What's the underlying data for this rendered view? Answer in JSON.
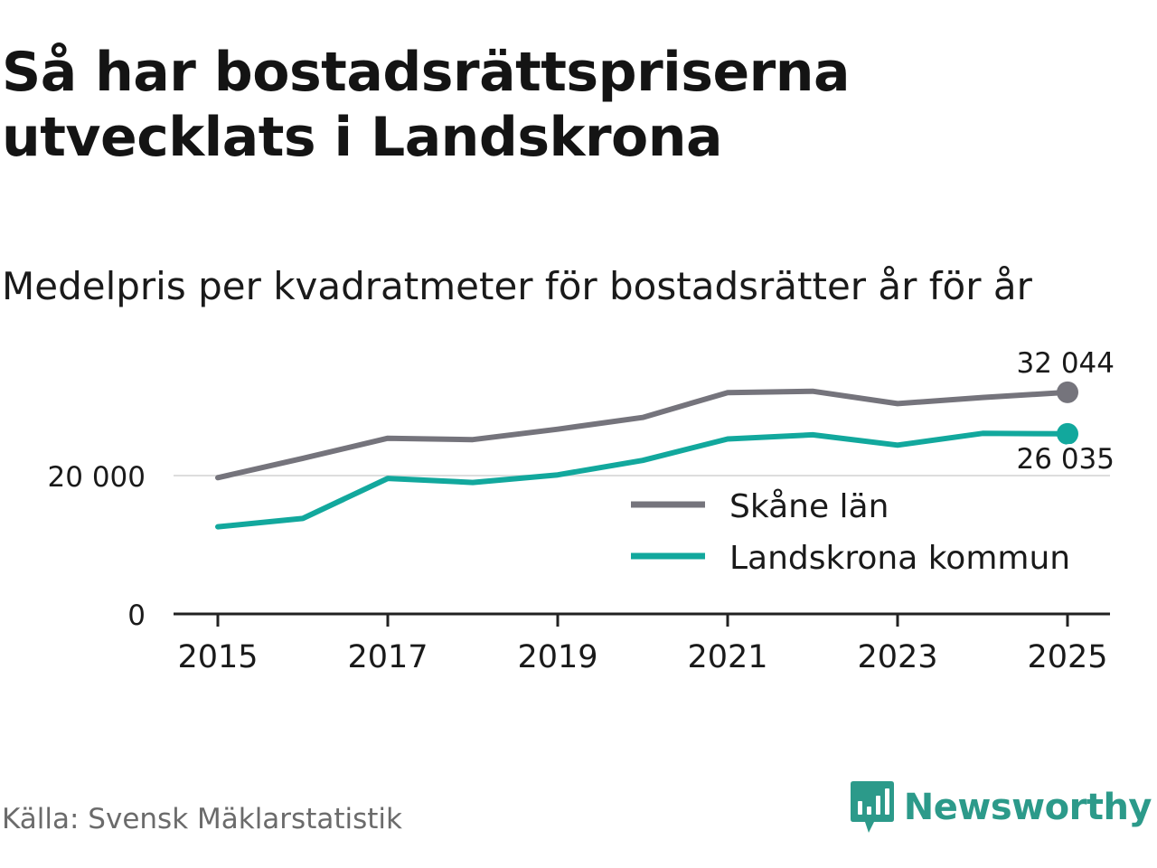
{
  "title": "Så har bostadsrättspriserna utvecklats i Landskrona",
  "subtitle": "Medelpris per kvadratmeter för bostadsrätter år för år",
  "source": "Källa: Svensk Mäklarstatistik",
  "brand": {
    "name": "Newsworthy",
    "icon": "newsworthy-logo-icon",
    "color": "#2c9a8a"
  },
  "colors": {
    "skane": "#75747c",
    "landskrona": "#12a89d",
    "grid": "#dddddd",
    "axis": "#222222",
    "text": "#1a1a1a"
  },
  "chart_data": {
    "type": "line",
    "title": "Medelpris per kvadratmeter för bostadsrätter år för år",
    "xlabel": "",
    "ylabel": "",
    "x": [
      2015,
      2016,
      2017,
      2018,
      2019,
      2020,
      2021,
      2022,
      2023,
      2024,
      2025
    ],
    "xlim": [
      2014.5,
      2025.5
    ],
    "ylim": [
      0,
      33000
    ],
    "xticks": [
      "2015",
      "2017",
      "2019",
      "2021",
      "2023",
      "2025"
    ],
    "yticks": [
      {
        "value": 0,
        "label": "0"
      },
      {
        "value": 20000,
        "label": "20 000"
      }
    ],
    "grid": "horizontal",
    "legend": "center-right",
    "series": [
      {
        "name": "Skåne län",
        "key": "skane",
        "values": [
          19700,
          22500,
          25400,
          25200,
          26700,
          28400,
          32000,
          32200,
          30400,
          31300,
          32044
        ],
        "end_label": "32 044",
        "end_label_position": "above"
      },
      {
        "name": "Landskrona kommun",
        "key": "landskrona",
        "values": [
          12600,
          13800,
          19600,
          19000,
          20100,
          22200,
          25300,
          25900,
          24400,
          26100,
          26035
        ],
        "end_label": "26 035",
        "end_label_position": "below"
      }
    ]
  }
}
